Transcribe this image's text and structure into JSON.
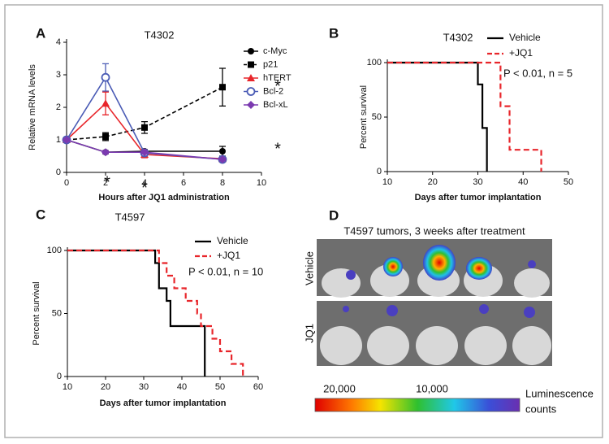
{
  "chart_data": [
    {
      "panel": "A",
      "type": "line",
      "title": "T4302",
      "x_label": "Hours after JQ1 administration",
      "y_label": "Relative mRNA levels",
      "x": [
        0,
        2,
        4,
        8
      ],
      "xlim": [
        0,
        10
      ],
      "xticks": [
        0,
        2,
        4,
        6,
        8,
        10
      ],
      "ylim": [
        0,
        4
      ],
      "yticks": [
        0,
        1,
        2,
        3,
        4
      ],
      "series": [
        {
          "name": "c-Myc",
          "color": "#000000",
          "marker": "circle",
          "dashed": false,
          "values": [
            1,
            0.62,
            0.65,
            0.65
          ],
          "errors": [
            0.05,
            0.05,
            0.05,
            0.15
          ]
        },
        {
          "name": "p21",
          "color": "#000000",
          "marker": "square",
          "dashed": true,
          "values": [
            1,
            1.1,
            1.38,
            2.62
          ],
          "errors": [
            0.05,
            0.12,
            0.18,
            0.58
          ]
        },
        {
          "name": "hTERT",
          "color": "#e8262b",
          "marker": "triangle",
          "dashed": false,
          "values": [
            1,
            2.12,
            0.55,
            0.42
          ],
          "errors": [
            0.05,
            0.35,
            0.1,
            0.05
          ]
        },
        {
          "name": "Bcl-2",
          "color": "#4a5bb5",
          "marker": "open-circle",
          "dashed": false,
          "values": [
            1,
            2.92,
            0.6,
            0.4
          ],
          "errors": [
            0.05,
            0.42,
            0.05,
            0.05
          ]
        },
        {
          "name": "Bcl-xL",
          "color": "#7b3ab0",
          "marker": "diamond",
          "dashed": false,
          "values": [
            1,
            0.62,
            0.62,
            0.4
          ],
          "errors": [
            0.05,
            0.05,
            0.05,
            0.05
          ]
        }
      ],
      "annotations": [
        "*",
        "*",
        "*",
        "*"
      ]
    },
    {
      "panel": "B",
      "type": "step",
      "title": "T4302",
      "x_label": "Days after tumor implantation",
      "y_label": "Percent survival",
      "xlim": [
        10,
        50
      ],
      "xticks": [
        10,
        20,
        30,
        40,
        50
      ],
      "ylim": [
        0,
        100
      ],
      "yticks": [
        0,
        50,
        100
      ],
      "series": [
        {
          "name": "Vehicle",
          "color": "#000000",
          "dashed": false,
          "x": [
            10,
            30,
            31,
            32
          ],
          "values": [
            100,
            80,
            40,
            0
          ]
        },
        {
          "name": "+JQ1",
          "color": "#e8262b",
          "dashed": true,
          "x": [
            10,
            35,
            37,
            44
          ],
          "values": [
            100,
            60,
            20,
            0
          ]
        }
      ],
      "annotations": [
        "P < 0.01, n = 5"
      ]
    },
    {
      "panel": "C",
      "type": "step",
      "title": "T4597",
      "x_label": "Days after tumor implantation",
      "y_label": "Percent survival",
      "xlim": [
        10,
        60
      ],
      "xticks": [
        10,
        20,
        30,
        40,
        50,
        60
      ],
      "ylim": [
        0,
        100
      ],
      "yticks": [
        0,
        50,
        100
      ],
      "series": [
        {
          "name": "Vehicle",
          "color": "#000000",
          "dashed": false,
          "x": [
            10,
            33,
            34,
            36,
            37,
            46
          ],
          "values": [
            100,
            90,
            70,
            60,
            40,
            0
          ]
        },
        {
          "name": "+JQ1",
          "color": "#e8262b",
          "dashed": true,
          "x": [
            10,
            34,
            36,
            38,
            41,
            44,
            45,
            48,
            50,
            53,
            56
          ],
          "values": [
            100,
            90,
            80,
            70,
            60,
            50,
            40,
            30,
            20,
            10,
            0
          ]
        }
      ],
      "annotations": [
        "P < 0.01, n = 10"
      ]
    }
  ],
  "image_panel": {
    "panel": "D",
    "title": "T4597 tumors, 3 weeks after treatment",
    "row_labels": [
      "Vehicle",
      "JQ1"
    ],
    "colorbar": {
      "labels": [
        "20,000",
        "10,000"
      ],
      "title": [
        "Luminescence",
        "counts"
      ]
    }
  }
}
